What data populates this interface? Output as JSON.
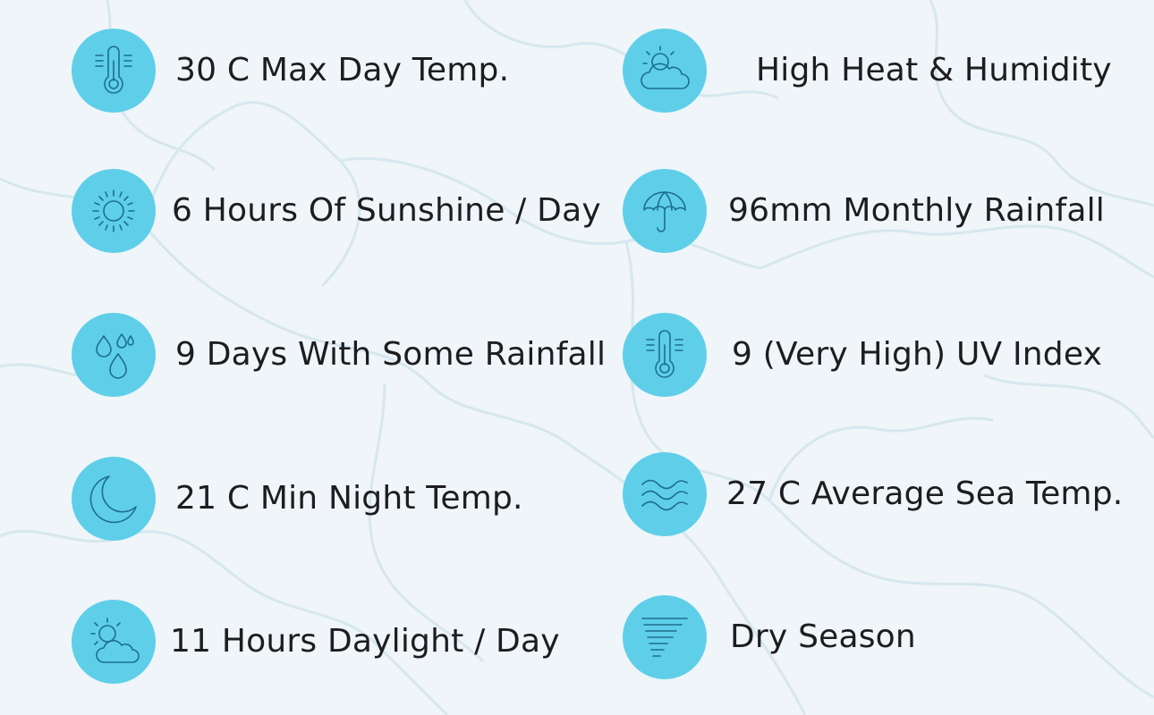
{
  "climate_facts": [
    {
      "icon": "thermometer-icon",
      "label": "30 C Max Day Temp."
    },
    {
      "icon": "sun-cloud-icon",
      "label": "High Heat & Humidity"
    },
    {
      "icon": "sun-icon",
      "label": "6 Hours Of Sunshine / Day"
    },
    {
      "icon": "umbrella-icon",
      "label": "96mm Monthly Rainfall"
    },
    {
      "icon": "raindrops-icon",
      "label": "9 Days With Some Rainfall"
    },
    {
      "icon": "thermometer-icon",
      "label": "9 (Very High) UV Index"
    },
    {
      "icon": "crescent-moon-icon",
      "label": "21 C Min Night Temp."
    },
    {
      "icon": "waves-icon",
      "label": "27 C Average Sea Temp."
    },
    {
      "icon": "sun-cloud-icon",
      "label": "11 Hours Daylight / Day"
    },
    {
      "icon": "wind-lines-icon",
      "label": "Dry Season"
    }
  ],
  "colors": {
    "background": "#eff5f8",
    "icon_circle": "#5fcfe9",
    "icon_stroke": "#1d6f8c",
    "text": "#1d1d1f"
  }
}
